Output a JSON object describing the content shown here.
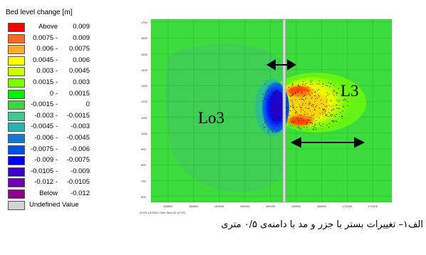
{
  "legend": {
    "title": "Bed level change [m]",
    "items": [
      {
        "lo": "Above",
        "hi": "0.009",
        "color": "#ff0000"
      },
      {
        "lo": "0.0075 -",
        "hi": "0.009",
        "color": "#ff6a1e"
      },
      {
        "lo": "0.006 -",
        "hi": "0.0075",
        "color": "#ffaa28"
      },
      {
        "lo": "0.0045 -",
        "hi": "0.006",
        "color": "#ffff00"
      },
      {
        "lo": "0.003 -",
        "hi": "0.0045",
        "color": "#c8ff00"
      },
      {
        "lo": "0.0015 -",
        "hi": "0.003",
        "color": "#78ff00"
      },
      {
        "lo": "0 -",
        "hi": "0.0015",
        "color": "#00f000"
      },
      {
        "lo": "-0.0015 -",
        "hi": "0",
        "color": "#40d240"
      },
      {
        "lo": "-0.003 -",
        "hi": "-0.0015",
        "color": "#40c890"
      },
      {
        "lo": "-0.0045 -",
        "hi": "-0.003",
        "color": "#20b4b4"
      },
      {
        "lo": "-0.006 -",
        "hi": "-0.0045",
        "color": "#1478d2"
      },
      {
        "lo": "-0.0075 -",
        "hi": "-0.006",
        "color": "#0050e6"
      },
      {
        "lo": "-0.009 -",
        "hi": "-0.0075",
        "color": "#0000ff"
      },
      {
        "lo": "-0.0105 -",
        "hi": "-0.009",
        "color": "#3c00c8"
      },
      {
        "lo": "-0.012 -",
        "hi": "-0.0105",
        "color": "#6e00b4"
      },
      {
        "lo": "Below",
        "hi": "-0.012",
        "color": "#8c008c"
      },
      {
        "lo": "Undefined Value",
        "hi": "",
        "color": "#d2d2d2"
      }
    ]
  },
  "map": {
    "label_left": "Lo3",
    "label_right": "L3",
    "footer": "02:00 1/1/2004 Time Step 42 of 720.",
    "y_ticks": [
      "1700",
      "1600",
      "1500",
      "1400",
      "1300",
      "1200",
      "1100",
      "1000",
      "900",
      "800",
      "700",
      "600"
    ],
    "x_ticks": [
      "168600",
      "168800",
      "169000",
      "169200",
      "169400",
      "169600",
      "169800",
      "170000",
      "170200"
    ],
    "colors": {
      "background_green": "#3cdc3c",
      "grid": "#28b428",
      "structure": "#b4b4b4"
    }
  },
  "caption": "الف۱– تغییرات بستر با جزر و مد با دامنه‌ی ۰/۵ متری"
}
